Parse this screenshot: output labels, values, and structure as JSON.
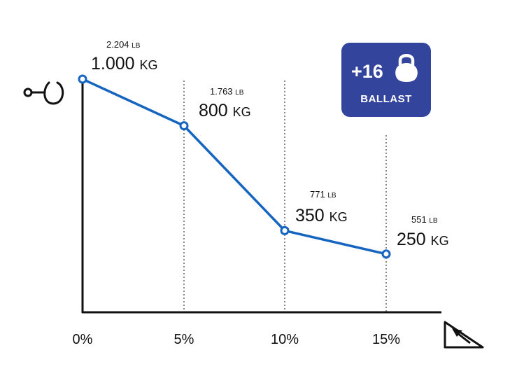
{
  "chart_data": {
    "type": "line",
    "categories": [
      "0%",
      "5%",
      "10%",
      "15%"
    ],
    "series": [
      {
        "values_kg": [
          1000,
          800,
          350,
          250
        ],
        "values_lb": [
          2204,
          1763,
          771,
          551
        ]
      }
    ],
    "point_labels": [
      {
        "lb": "2.204",
        "kg": "1.000"
      },
      {
        "lb": "1.763",
        "kg": "800"
      },
      {
        "lb": "771",
        "kg": "350"
      },
      {
        "lb": "551",
        "kg": "250"
      }
    ],
    "units": {
      "primary": "KG",
      "secondary": "LB"
    },
    "ylim": [
      0,
      1150
    ],
    "line_color": "#1565c0",
    "grid": "vertical-dotted"
  },
  "badge": {
    "value": "+16",
    "label": "BALLAST",
    "icon": "kettlebell-icon",
    "color": "#33449c"
  },
  "icons": {
    "y_axis": "tow-hook-icon",
    "x_axis": "incline-slope-icon"
  }
}
